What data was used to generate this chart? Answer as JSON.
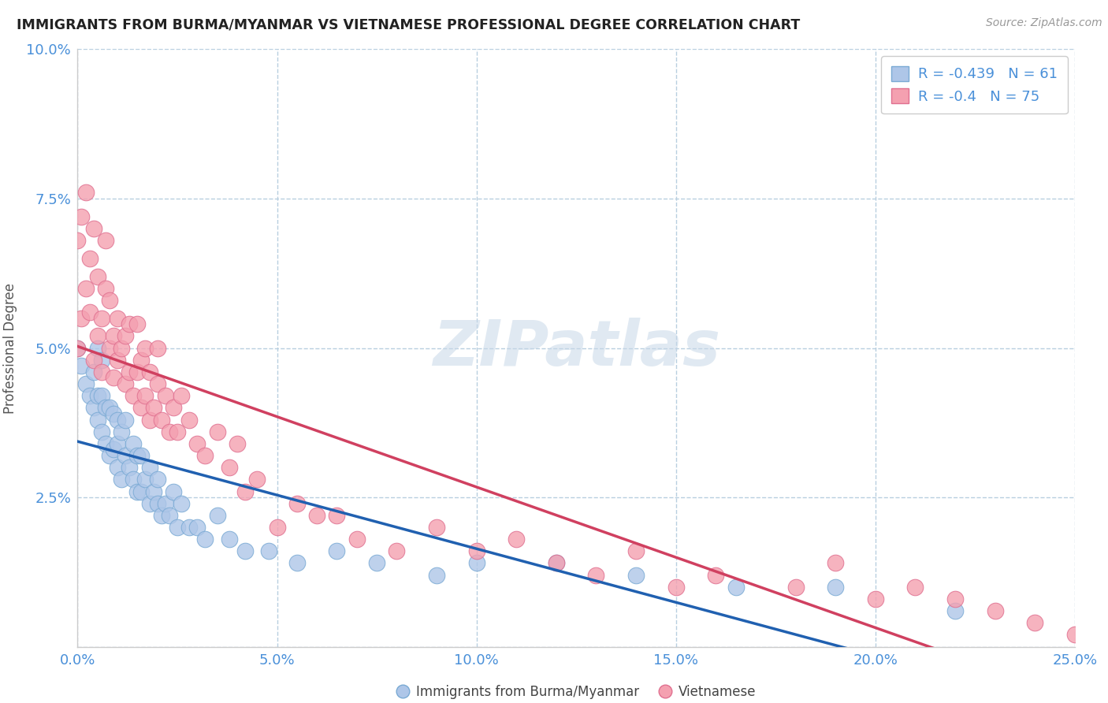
{
  "title": "IMMIGRANTS FROM BURMA/MYANMAR VS VIETNAMESE PROFESSIONAL DEGREE CORRELATION CHART",
  "source": "Source: ZipAtlas.com",
  "ylabel": "Professional Degree",
  "watermark": "ZIPatlas",
  "xlim": [
    0.0,
    0.25
  ],
  "ylim": [
    0.0,
    0.1
  ],
  "xticks": [
    0.0,
    0.05,
    0.1,
    0.15,
    0.2,
    0.25
  ],
  "yticks": [
    0.0,
    0.025,
    0.05,
    0.075,
    0.1
  ],
  "xtick_labels": [
    "0.0%",
    "5.0%",
    "10.0%",
    "15.0%",
    "20.0%",
    "25.0%"
  ],
  "ytick_labels": [
    "",
    "2.5%",
    "5.0%",
    "7.5%",
    "10.0%"
  ],
  "series1_label": "Immigrants from Burma/Myanmar",
  "series1_color": "#aec6e8",
  "series1_edge_color": "#7aaad4",
  "series1_R": -0.439,
  "series1_N": 61,
  "series1_line_color": "#2060b0",
  "series2_label": "Vietnamese",
  "series2_color": "#f4a0b0",
  "series2_edge_color": "#e07090",
  "series2_R": -0.4,
  "series2_N": 75,
  "series2_line_color": "#d04060",
  "background_color": "#ffffff",
  "grid_color": "#b8cfe0",
  "title_color": "#222222",
  "axis_color": "#4a90d9",
  "series1_x": [
    0.0,
    0.001,
    0.002,
    0.003,
    0.004,
    0.004,
    0.005,
    0.005,
    0.005,
    0.006,
    0.006,
    0.006,
    0.007,
    0.007,
    0.008,
    0.008,
    0.009,
    0.009,
    0.01,
    0.01,
    0.01,
    0.011,
    0.011,
    0.012,
    0.012,
    0.013,
    0.014,
    0.014,
    0.015,
    0.015,
    0.016,
    0.016,
    0.017,
    0.018,
    0.018,
    0.019,
    0.02,
    0.02,
    0.021,
    0.022,
    0.023,
    0.024,
    0.025,
    0.026,
    0.028,
    0.03,
    0.032,
    0.035,
    0.038,
    0.042,
    0.048,
    0.055,
    0.065,
    0.075,
    0.09,
    0.1,
    0.12,
    0.14,
    0.165,
    0.19,
    0.22
  ],
  "series1_y": [
    0.05,
    0.047,
    0.044,
    0.042,
    0.04,
    0.046,
    0.038,
    0.042,
    0.05,
    0.036,
    0.042,
    0.048,
    0.034,
    0.04,
    0.032,
    0.04,
    0.033,
    0.039,
    0.03,
    0.034,
    0.038,
    0.028,
    0.036,
    0.032,
    0.038,
    0.03,
    0.028,
    0.034,
    0.026,
    0.032,
    0.026,
    0.032,
    0.028,
    0.024,
    0.03,
    0.026,
    0.024,
    0.028,
    0.022,
    0.024,
    0.022,
    0.026,
    0.02,
    0.024,
    0.02,
    0.02,
    0.018,
    0.022,
    0.018,
    0.016,
    0.016,
    0.014,
    0.016,
    0.014,
    0.012,
    0.014,
    0.014,
    0.012,
    0.01,
    0.01,
    0.006
  ],
  "series2_x": [
    0.0,
    0.0,
    0.001,
    0.001,
    0.002,
    0.002,
    0.003,
    0.003,
    0.004,
    0.004,
    0.005,
    0.005,
    0.006,
    0.006,
    0.007,
    0.007,
    0.008,
    0.008,
    0.009,
    0.009,
    0.01,
    0.01,
    0.011,
    0.012,
    0.012,
    0.013,
    0.013,
    0.014,
    0.015,
    0.015,
    0.016,
    0.016,
    0.017,
    0.017,
    0.018,
    0.018,
    0.019,
    0.02,
    0.02,
    0.021,
    0.022,
    0.023,
    0.024,
    0.025,
    0.026,
    0.028,
    0.03,
    0.032,
    0.035,
    0.038,
    0.04,
    0.042,
    0.045,
    0.05,
    0.055,
    0.06,
    0.065,
    0.07,
    0.08,
    0.09,
    0.1,
    0.11,
    0.12,
    0.13,
    0.14,
    0.15,
    0.16,
    0.18,
    0.19,
    0.2,
    0.21,
    0.22,
    0.23,
    0.24,
    0.25
  ],
  "series2_y": [
    0.05,
    0.068,
    0.055,
    0.072,
    0.06,
    0.076,
    0.065,
    0.056,
    0.07,
    0.048,
    0.062,
    0.052,
    0.055,
    0.046,
    0.06,
    0.068,
    0.05,
    0.058,
    0.052,
    0.045,
    0.048,
    0.055,
    0.05,
    0.044,
    0.052,
    0.046,
    0.054,
    0.042,
    0.046,
    0.054,
    0.04,
    0.048,
    0.042,
    0.05,
    0.038,
    0.046,
    0.04,
    0.044,
    0.05,
    0.038,
    0.042,
    0.036,
    0.04,
    0.036,
    0.042,
    0.038,
    0.034,
    0.032,
    0.036,
    0.03,
    0.034,
    0.026,
    0.028,
    0.02,
    0.024,
    0.022,
    0.022,
    0.018,
    0.016,
    0.02,
    0.016,
    0.018,
    0.014,
    0.012,
    0.016,
    0.01,
    0.012,
    0.01,
    0.014,
    0.008,
    0.01,
    0.008,
    0.006,
    0.004,
    0.002
  ]
}
